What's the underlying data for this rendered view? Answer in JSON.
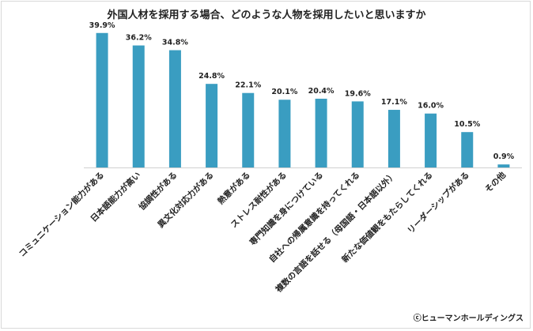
{
  "chart_data": {
    "type": "bar",
    "title": "外国人材を採用する場合、どのような人物を採用したいと思いますか",
    "categories": [
      "コミュニケーション能力がある",
      "日本語能力が高い",
      "協調性がある",
      "異文化対応力がある",
      "熱意がある",
      "ストレス耐性がある",
      "専門知識を身につけている",
      "自社への帰属意識を持ってくれる",
      "複数の言語を話せる（母国語・日本語以外）",
      "新たな価値観をもたらしてくれる",
      "リーダーシップがある",
      "その他"
    ],
    "values": [
      39.9,
      36.2,
      34.8,
      24.8,
      22.1,
      20.1,
      20.4,
      19.6,
      17.1,
      16.0,
      10.5,
      0.9
    ],
    "value_labels": [
      "39.9%",
      "36.2%",
      "34.8%",
      "24.8%",
      "22.1%",
      "20.1%",
      "20.4%",
      "19.6%",
      "17.1%",
      "16.0%",
      "10.5%",
      "0.9%"
    ],
    "ylim": [
      0,
      45
    ],
    "xlabel": "",
    "ylabel": "",
    "bar_color": "#3a9dc1",
    "grid": false
  },
  "copyright": "ⓒヒューマンホールディングス"
}
